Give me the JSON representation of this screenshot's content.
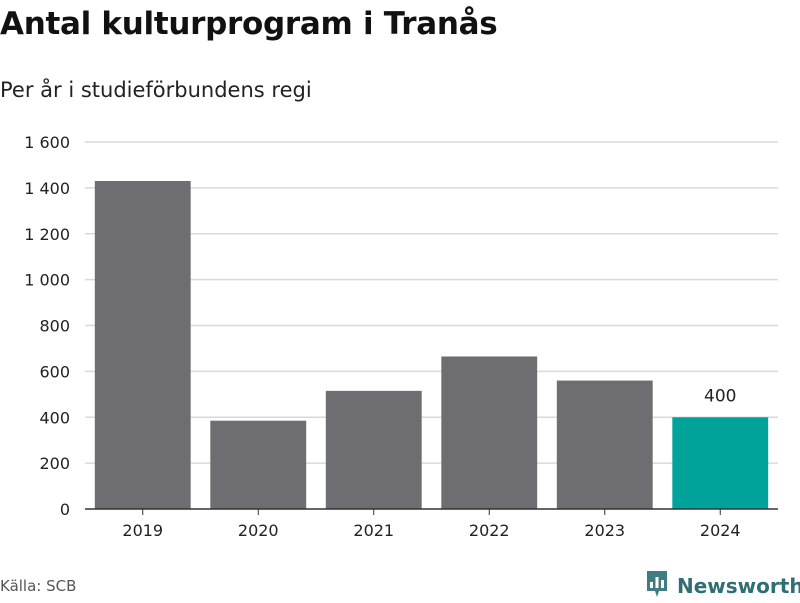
{
  "header": {
    "title": "Antal kulturprogram i Tranås",
    "subtitle": "Per år i studieförbundens regi"
  },
  "footer": {
    "source": "Källa: SCB",
    "brand": "Newsworthy",
    "brand_icon": "bar-chart-icon"
  },
  "colors": {
    "bar": "#6e6d72",
    "highlight": "#00a39a",
    "grid": "#d9d9d9",
    "axis": "#333333",
    "brand": "#2f6f73"
  },
  "chart_data": {
    "type": "bar",
    "title": "Antal kulturprogram i Tranås",
    "subtitle": "Per år i studieförbundens regi",
    "categories": [
      "2019",
      "2020",
      "2021",
      "2022",
      "2023",
      "2024"
    ],
    "values": [
      1430,
      385,
      515,
      665,
      560,
      400
    ],
    "highlight_index": 5,
    "data_labels": [
      {
        "index": 5,
        "text": "400"
      }
    ],
    "ylim": [
      0,
      1600
    ],
    "yticks": [
      0,
      200,
      400,
      600,
      800,
      1000,
      1200,
      1400,
      1600
    ],
    "ytick_labels": [
      "0",
      "200",
      "400",
      "600",
      "800",
      "1 000",
      "1 200",
      "1 400",
      "1 600"
    ],
    "xlabel": "",
    "ylabel": "",
    "grid": true
  }
}
